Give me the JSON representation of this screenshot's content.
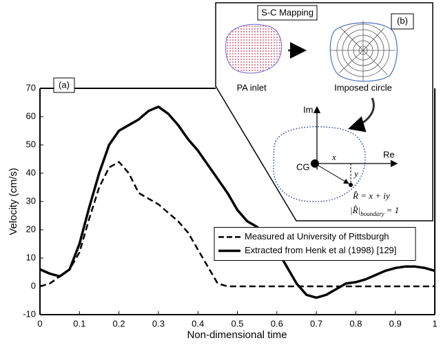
{
  "chart_data": {
    "type": "line",
    "panel_label": "(a)",
    "xlabel": "Non-dimensional time",
    "ylabel": "Velocity (cm/s)",
    "x": [
      0,
      0.025,
      0.05,
      0.075,
      0.1,
      0.125,
      0.15,
      0.175,
      0.2,
      0.225,
      0.25,
      0.275,
      0.3,
      0.325,
      0.35,
      0.375,
      0.4,
      0.425,
      0.45,
      0.475,
      0.5,
      0.525,
      0.55,
      0.575,
      0.6,
      0.625,
      0.65,
      0.675,
      0.7,
      0.725,
      0.75,
      0.775,
      0.8,
      0.825,
      0.85,
      0.875,
      0.9,
      0.925,
      0.95,
      0.975,
      1
    ],
    "series": [
      {
        "name": "Measured at University of Pittsburgh",
        "color": "#000000",
        "line_style": "dashed",
        "values": [
          0,
          1,
          3.5,
          6,
          12,
          24,
          35,
          42,
          44,
          40,
          33,
          31,
          29,
          26,
          23,
          19,
          13,
          7,
          1,
          0,
          0,
          0,
          0,
          0,
          0,
          0,
          0,
          0,
          0,
          0,
          0,
          0,
          0,
          0,
          0,
          0,
          0,
          0,
          0,
          0,
          0
        ]
      },
      {
        "name": "Extracted from Henk et al (1998) [129]",
        "color": "#000000",
        "line_style": "solid",
        "values": [
          6,
          4.5,
          3.5,
          6,
          15,
          28,
          40,
          50,
          55,
          57,
          59,
          62,
          63.5,
          61,
          57,
          52,
          48,
          43,
          38,
          33,
          27,
          23,
          21,
          17,
          13,
          7,
          1,
          -3,
          -4,
          -3,
          -1,
          1,
          1.5,
          2.5,
          4,
          5.5,
          6.5,
          7,
          7,
          6.5,
          5.5
        ]
      }
    ],
    "xlim": [
      0,
      1
    ],
    "xticks": [
      0,
      0.1,
      0.2,
      0.3,
      0.4,
      0.5,
      0.6,
      0.7,
      0.8,
      0.9,
      1
    ],
    "ylim": [
      -10,
      70
    ],
    "yticks": [
      -10,
      0,
      10,
      20,
      30,
      40,
      50,
      60,
      70
    ],
    "grid": false,
    "legend": "right"
  },
  "inset": {
    "title": "S-C Mapping",
    "label": "(b)",
    "left_caption": "PA inlet",
    "right_caption": "Imposed circle",
    "im_axis": "Im",
    "re_axis": "Re",
    "center": "CG",
    "x_label": "x",
    "y_label": "y",
    "formula": "R̂ = x + iy",
    "boundary_left": "|R̂|",
    "boundary_sub": "boundary",
    "boundary_right": "= 1"
  }
}
